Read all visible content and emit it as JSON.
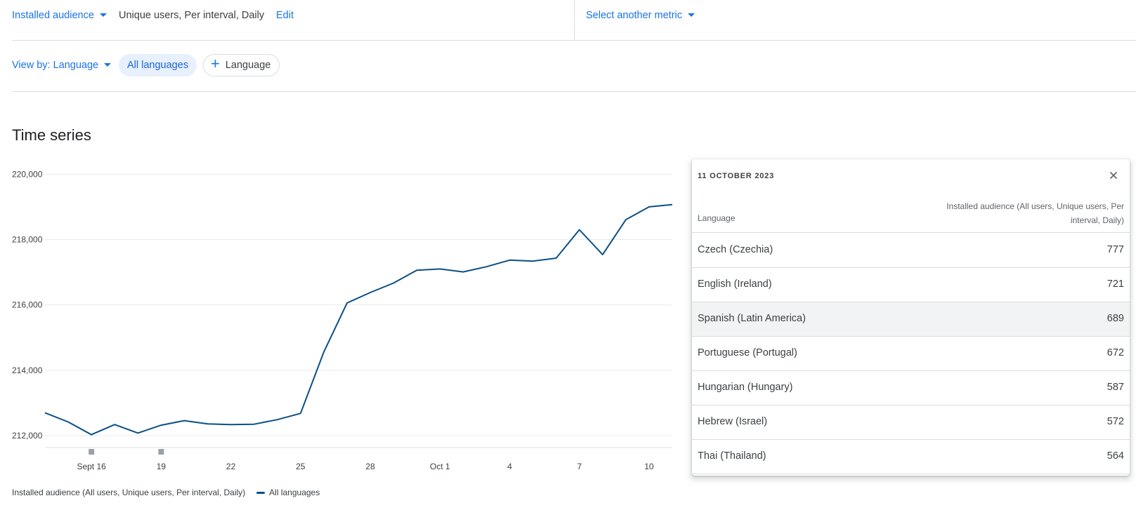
{
  "top": {
    "metric_dropdown": "Installed audience",
    "metric_detail": "Unique users, Per interval, Daily",
    "edit_label": "Edit",
    "compare_dropdown": "Select another metric"
  },
  "filters": {
    "view_by": "View by: Language",
    "chip_all": "All languages",
    "chip_add": "Language"
  },
  "section_title": "Time series",
  "colors": {
    "accent": "#1a73e8",
    "series": "#0b4f86"
  },
  "chart_data": {
    "type": "line",
    "y_ticks": [
      "220,000",
      "218,000",
      "216,000",
      "214,000",
      "212,000"
    ],
    "ylim": [
      211700,
      220200
    ],
    "x_ticks": [
      {
        "label": "Sept 16",
        "day": "2023-09-16"
      },
      {
        "label": "19",
        "day": "2023-09-19"
      },
      {
        "label": "22",
        "day": "2023-09-22"
      },
      {
        "label": "25",
        "day": "2023-09-25"
      },
      {
        "label": "28",
        "day": "2023-09-28"
      },
      {
        "label": "Oct 1",
        "day": "2023-10-01"
      },
      {
        "label": "4",
        "day": "2023-10-04"
      },
      {
        "label": "7",
        "day": "2023-10-07"
      },
      {
        "label": "10",
        "day": "2023-10-10"
      }
    ],
    "markers": [
      "2023-09-16",
      "2023-09-19"
    ],
    "series": [
      {
        "name": "All languages",
        "points": [
          [
            "2023-09-14",
            212700
          ],
          [
            "2023-09-15",
            212420
          ],
          [
            "2023-09-16",
            212030
          ],
          [
            "2023-09-17",
            212340
          ],
          [
            "2023-09-18",
            212080
          ],
          [
            "2023-09-19",
            212320
          ],
          [
            "2023-09-20",
            212460
          ],
          [
            "2023-09-21",
            212360
          ],
          [
            "2023-09-22",
            212340
          ],
          [
            "2023-09-23",
            212350
          ],
          [
            "2023-09-24",
            212490
          ],
          [
            "2023-09-25",
            212680
          ],
          [
            "2023-09-26",
            214560
          ],
          [
            "2023-09-27",
            216060
          ],
          [
            "2023-09-28",
            216380
          ],
          [
            "2023-09-29",
            216670
          ],
          [
            "2023-09-30",
            217060
          ],
          [
            "2023-10-01",
            217100
          ],
          [
            "2023-10-02",
            217010
          ],
          [
            "2023-10-03",
            217170
          ],
          [
            "2023-10-04",
            217370
          ],
          [
            "2023-10-05",
            217340
          ],
          [
            "2023-10-06",
            217430
          ],
          [
            "2023-10-07",
            218300
          ],
          [
            "2023-10-08",
            217540
          ],
          [
            "2023-10-09",
            218610
          ],
          [
            "2023-10-10",
            219000
          ],
          [
            "2023-10-11",
            219070
          ]
        ]
      }
    ]
  },
  "panel": {
    "date": "11 OCTOBER 2023",
    "col_language": "Language",
    "col_metric": "Installed audience (All users, Unique users, Per interval, Daily)",
    "rows": [
      {
        "language": "Czech (Czechia)",
        "value": "777"
      },
      {
        "language": "English (Ireland)",
        "value": "721"
      },
      {
        "language": "Spanish (Latin America)",
        "value": "689"
      },
      {
        "language": "Portuguese (Portugal)",
        "value": "672"
      },
      {
        "language": "Hungarian (Hungary)",
        "value": "587"
      },
      {
        "language": "Hebrew (Israel)",
        "value": "572"
      },
      {
        "language": "Thai (Thailand)",
        "value": "564"
      }
    ]
  },
  "legend": {
    "metric": "Installed audience (All users, Unique users, Per interval, Daily)",
    "series": "All languages"
  }
}
